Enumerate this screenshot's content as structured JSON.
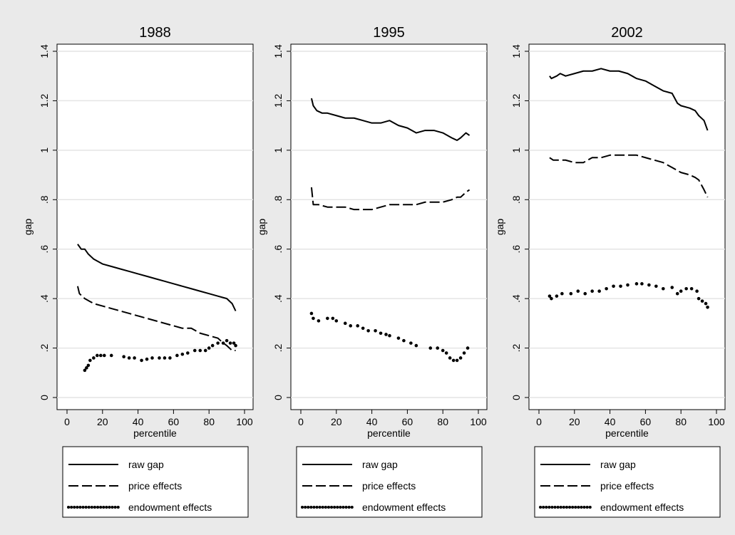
{
  "chart_data": [
    {
      "type": "line",
      "title": "1988",
      "xlabel": "percentile",
      "ylabel": "gap",
      "xlim": [
        0,
        100
      ],
      "ylim": [
        0,
        1.4
      ],
      "xticks": [
        0,
        20,
        40,
        60,
        80,
        100
      ],
      "yticks": [
        0,
        {
          "value": 0.2,
          "label": ".2"
        },
        {
          "value": 0.4,
          "label": ".4"
        },
        {
          "value": 0.6,
          "label": ".6"
        },
        {
          "value": 0.8,
          "label": ".8"
        },
        1,
        1.2,
        1.4
      ],
      "grid": true,
      "series": [
        {
          "name": "raw gap",
          "color": "#000000",
          "style": "solid",
          "x": [
            6,
            8,
            10,
            12,
            15,
            20,
            25,
            30,
            35,
            40,
            45,
            50,
            55,
            60,
            65,
            70,
            75,
            80,
            85,
            90,
            93,
            95
          ],
          "values": [
            0.62,
            0.6,
            0.6,
            0.58,
            0.56,
            0.54,
            0.53,
            0.52,
            0.51,
            0.5,
            0.49,
            0.48,
            0.47,
            0.46,
            0.45,
            0.44,
            0.43,
            0.42,
            0.41,
            0.4,
            0.38,
            0.35
          ]
        },
        {
          "name": "price effects",
          "color": "#000000",
          "style": "dashed",
          "x": [
            6,
            7,
            10,
            15,
            20,
            25,
            30,
            35,
            40,
            45,
            50,
            55,
            60,
            65,
            70,
            75,
            80,
            85,
            88,
            90,
            93,
            95
          ],
          "values": [
            0.45,
            0.42,
            0.4,
            0.38,
            0.37,
            0.36,
            0.35,
            0.34,
            0.33,
            0.32,
            0.31,
            0.3,
            0.29,
            0.28,
            0.28,
            0.26,
            0.25,
            0.24,
            0.22,
            0.21,
            0.19,
            0.19
          ]
        },
        {
          "name": "endowment effects",
          "color": "#000000",
          "style": "dotted",
          "x": [
            10,
            11,
            12,
            13,
            15,
            17,
            19,
            21,
            23,
            25,
            28,
            32,
            35,
            38,
            42,
            45,
            48,
            52,
            55,
            58,
            62,
            65,
            68,
            72,
            75,
            78,
            80,
            82,
            85,
            88,
            90,
            92,
            94,
            95
          ],
          "values": [
            0.11,
            0.12,
            0.13,
            0.15,
            0.16,
            0.17,
            0.17,
            0.17,
            null,
            0.17,
            null,
            0.165,
            0.16,
            0.16,
            0.15,
            0.155,
            0.16,
            0.16,
            0.16,
            0.16,
            0.17,
            0.175,
            0.18,
            0.19,
            0.19,
            0.19,
            0.2,
            0.21,
            0.22,
            0.22,
            0.23,
            0.22,
            0.22,
            0.21
          ]
        }
      ]
    },
    {
      "type": "line",
      "title": "1995",
      "xlabel": "percentile",
      "ylabel": "gap",
      "xlim": [
        0,
        100
      ],
      "ylim": [
        0,
        1.4
      ],
      "xticks": [
        0,
        20,
        40,
        60,
        80,
        100
      ],
      "yticks": [
        0,
        {
          "value": 0.2,
          "label": ".2"
        },
        {
          "value": 0.4,
          "label": ".4"
        },
        {
          "value": 0.6,
          "label": ".6"
        },
        {
          "value": 0.8,
          "label": ".8"
        },
        1,
        1.2,
        1.4
      ],
      "grid": true,
      "series": [
        {
          "name": "raw gap",
          "color": "#000000",
          "style": "solid",
          "x": [
            6,
            7,
            9,
            12,
            15,
            20,
            25,
            30,
            35,
            40,
            45,
            50,
            55,
            60,
            65,
            70,
            75,
            80,
            85,
            88,
            90,
            93,
            95
          ],
          "values": [
            1.21,
            1.18,
            1.16,
            1.15,
            1.15,
            1.14,
            1.13,
            1.13,
            1.12,
            1.11,
            1.11,
            1.12,
            1.1,
            1.09,
            1.07,
            1.08,
            1.08,
            1.07,
            1.05,
            1.04,
            1.05,
            1.07,
            1.06
          ]
        },
        {
          "name": "price effects",
          "color": "#000000",
          "style": "dashed",
          "x": [
            6,
            7,
            10,
            15,
            20,
            25,
            30,
            35,
            40,
            45,
            50,
            55,
            60,
            65,
            70,
            75,
            80,
            85,
            88,
            90,
            93,
            95
          ],
          "values": [
            0.85,
            0.78,
            0.78,
            0.77,
            0.77,
            0.77,
            0.76,
            0.76,
            0.76,
            0.77,
            0.78,
            0.78,
            0.78,
            0.78,
            0.79,
            0.79,
            0.79,
            0.8,
            0.81,
            0.81,
            0.83,
            0.84
          ]
        },
        {
          "name": "endowment effects",
          "color": "#000000",
          "style": "dotted",
          "x": [
            6,
            7,
            10,
            15,
            18,
            20,
            25,
            28,
            32,
            35,
            38,
            42,
            45,
            48,
            50,
            55,
            58,
            62,
            65,
            69,
            73,
            77,
            80,
            82,
            84,
            86,
            88,
            90,
            92,
            94
          ],
          "values": [
            0.34,
            0.32,
            0.31,
            0.32,
            0.32,
            0.31,
            0.3,
            0.29,
            0.29,
            0.28,
            0.27,
            0.27,
            0.26,
            0.255,
            0.25,
            0.24,
            0.23,
            0.22,
            0.21,
            null,
            0.2,
            0.2,
            0.19,
            0.18,
            0.16,
            0.15,
            0.15,
            0.16,
            0.18,
            0.2
          ]
        }
      ]
    },
    {
      "type": "line",
      "title": "2002",
      "xlabel": "percentile",
      "ylabel": "gap",
      "xlim": [
        0,
        100
      ],
      "ylim": [
        0,
        1.4
      ],
      "xticks": [
        0,
        20,
        40,
        60,
        80,
        100
      ],
      "yticks": [
        0,
        {
          "value": 0.2,
          "label": ".2"
        },
        {
          "value": 0.4,
          "label": ".4"
        },
        {
          "value": 0.6,
          "label": ".6"
        },
        {
          "value": 0.8,
          "label": ".8"
        },
        1,
        1.2,
        1.4
      ],
      "grid": true,
      "series": [
        {
          "name": "raw gap",
          "color": "#000000",
          "style": "solid",
          "x": [
            6,
            7,
            10,
            12,
            15,
            20,
            25,
            30,
            35,
            40,
            45,
            50,
            55,
            60,
            65,
            70,
            75,
            78,
            80,
            85,
            88,
            90,
            93,
            95
          ],
          "values": [
            1.3,
            1.29,
            1.3,
            1.31,
            1.3,
            1.31,
            1.32,
            1.32,
            1.33,
            1.32,
            1.32,
            1.31,
            1.29,
            1.28,
            1.26,
            1.24,
            1.23,
            1.19,
            1.18,
            1.17,
            1.16,
            1.14,
            1.12,
            1.08
          ]
        },
        {
          "name": "price effects",
          "color": "#000000",
          "style": "dashed",
          "x": [
            6,
            8,
            10,
            15,
            20,
            25,
            30,
            35,
            40,
            45,
            50,
            55,
            60,
            65,
            70,
            75,
            80,
            85,
            88,
            90,
            93,
            95
          ],
          "values": [
            0.97,
            0.96,
            0.96,
            0.96,
            0.95,
            0.95,
            0.97,
            0.97,
            0.98,
            0.98,
            0.98,
            0.98,
            0.97,
            0.96,
            0.95,
            0.93,
            0.91,
            0.9,
            0.89,
            0.88,
            0.84,
            0.81
          ]
        },
        {
          "name": "endowment effects",
          "color": "#000000",
          "style": "dotted",
          "x": [
            6,
            7,
            10,
            13,
            18,
            22,
            26,
            30,
            34,
            38,
            42,
            46,
            50,
            55,
            58,
            62,
            66,
            70,
            75,
            78,
            80,
            83,
            86,
            89,
            90,
            92,
            94,
            95
          ],
          "values": [
            0.41,
            0.4,
            0.41,
            0.42,
            0.42,
            0.43,
            0.42,
            0.43,
            0.43,
            0.44,
            0.45,
            0.45,
            0.455,
            0.46,
            0.46,
            0.455,
            0.45,
            0.44,
            0.445,
            0.42,
            0.43,
            0.44,
            0.44,
            0.43,
            0.4,
            0.39,
            0.38,
            0.365
          ]
        }
      ]
    }
  ]
}
